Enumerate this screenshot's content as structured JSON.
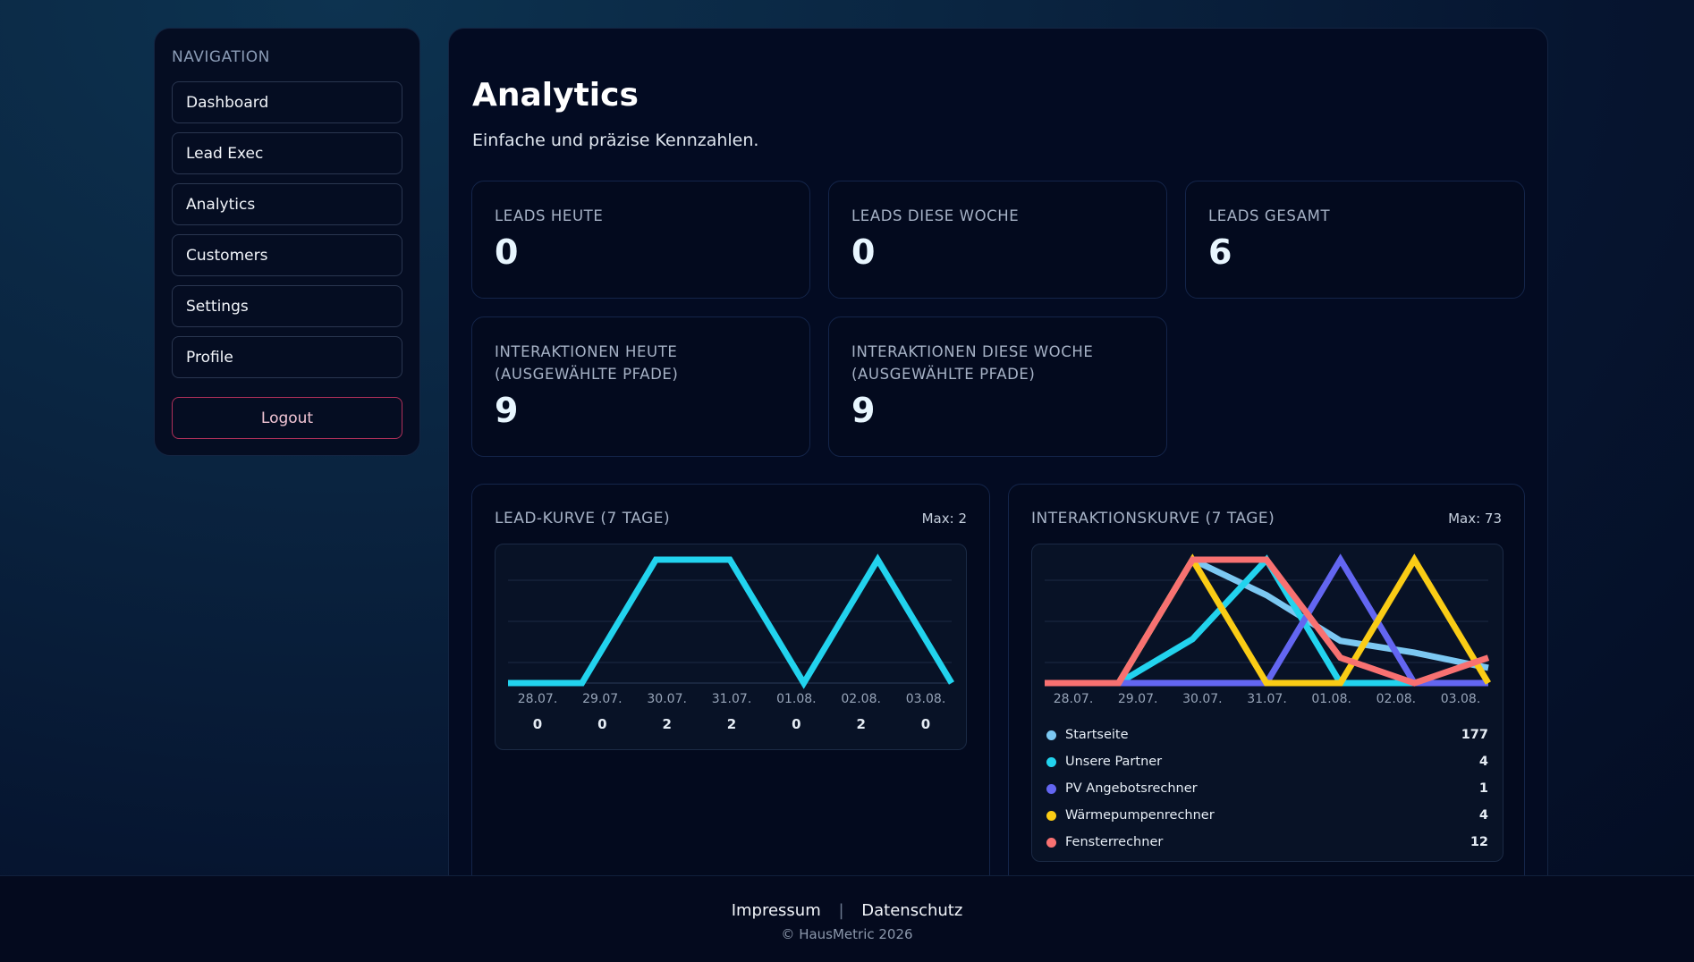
{
  "nav": {
    "heading": "NAVIGATION",
    "items": [
      "Dashboard",
      "Lead Exec",
      "Analytics",
      "Customers",
      "Settings",
      "Profile"
    ],
    "logout": "Logout"
  },
  "page": {
    "title": "Analytics",
    "subtitle": "Einfache und präzise Kennzahlen."
  },
  "stats": [
    {
      "label": "LEADS HEUTE",
      "value": "0"
    },
    {
      "label": "LEADS DIESE WOCHE",
      "value": "0"
    },
    {
      "label": "LEADS GESAMT",
      "value": "6"
    },
    {
      "label": "INTERAKTIONEN HEUTE (AUSGEWÄHLTE PFADE)",
      "value": "9"
    },
    {
      "label": "INTERAKTIONEN DIESE WOCHE (AUSGEWÄHLTE PFADE)",
      "value": "9"
    }
  ],
  "lead_chart": {
    "title": "LEAD-KURVE (7 TAGE)",
    "max_label": "Max: 2"
  },
  "interaction_chart": {
    "title": "INTERAKTIONSKURVE (7 TAGE)",
    "max_label": "Max: 73"
  },
  "chart_data": [
    {
      "type": "line",
      "categories": [
        "28.07.",
        "29.07.",
        "30.07.",
        "31.07.",
        "01.08.",
        "02.08.",
        "03.08."
      ],
      "series": [
        {
          "values": [
            0,
            0,
            2,
            2,
            0,
            2,
            0
          ],
          "color": "#22d3ee"
        }
      ],
      "value_labels": [
        "0",
        "0",
        "2",
        "2",
        "0",
        "2",
        "0"
      ],
      "ylim": [
        0,
        2
      ]
    },
    {
      "type": "line",
      "categories": [
        "28.07.",
        "29.07.",
        "30.07.",
        "31.07.",
        "01.08.",
        "02.08.",
        "03.08."
      ],
      "ylim": [
        0,
        73
      ],
      "series": [
        {
          "name": "Startseite",
          "total": "177",
          "color": "#7cc8f2",
          "values": [
            0,
            0,
            73,
            52,
            25,
            18,
            9
          ]
        },
        {
          "name": "Unsere Partner",
          "total": "4",
          "color": "#22d3ee",
          "values": [
            0,
            0,
            26,
            73,
            0,
            0,
            0
          ]
        },
        {
          "name": "PV Angebotsrechner",
          "total": "1",
          "color": "#6366f1",
          "values": [
            0,
            0,
            0,
            0,
            73,
            0,
            0
          ]
        },
        {
          "name": "Wärmepumpenrechner",
          "total": "4",
          "color": "#facc15",
          "values": [
            0,
            0,
            73,
            0,
            0,
            73,
            0
          ]
        },
        {
          "name": "Fensterrechner",
          "total": "12",
          "color": "#f87171",
          "values": [
            0,
            0,
            73,
            73,
            15,
            0,
            15
          ]
        }
      ]
    }
  ],
  "footer": {
    "impressum": "Impressum",
    "separator": "|",
    "datenschutz": "Datenschutz",
    "copyright": "© HausMetric 2026"
  }
}
